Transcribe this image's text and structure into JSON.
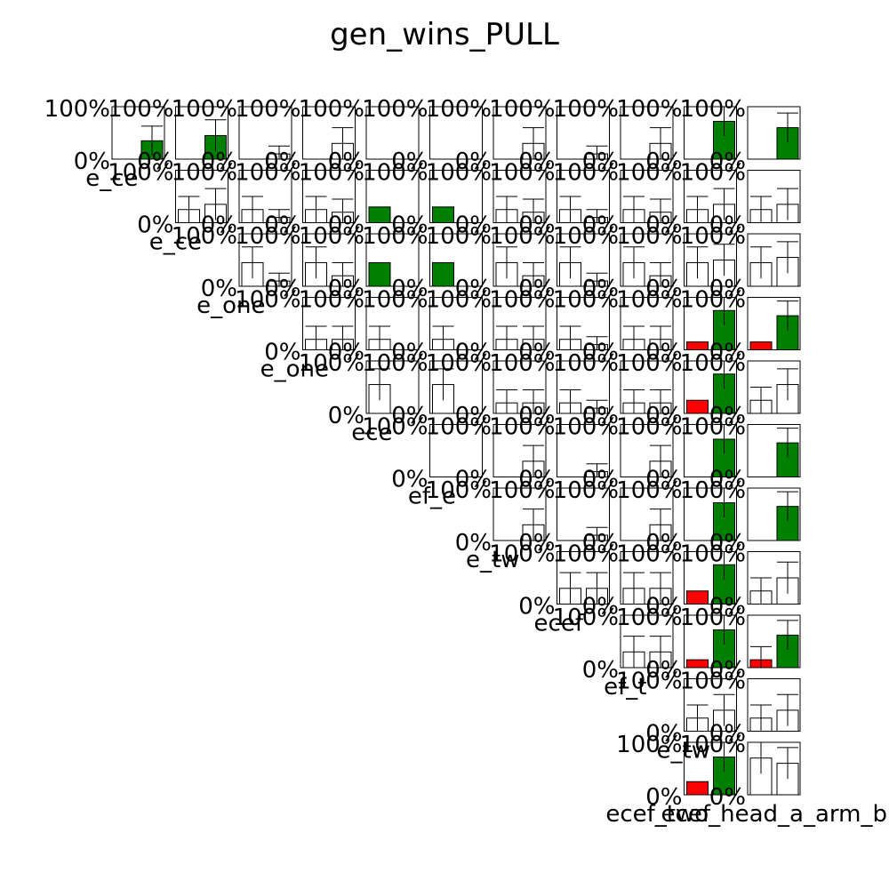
{
  "chart_data": {
    "type": "bar",
    "title": "gen_wins_PULL",
    "layout": "pairwise upper-triangular grid of small bar panels (row index = agent A, column index = agent B)",
    "ytick_labels": [
      "100%",
      "0%"
    ],
    "ylim": [
      0,
      1
    ],
    "bar_colors": {
      "significant_win": "#008000",
      "significant_loss": "#ff0000",
      "not_significant": "#ffffff"
    },
    "row_labels": [
      "e_ce",
      "e_ce",
      "e_one",
      "e_one",
      "ece",
      "ef_e",
      "e_tw",
      "ecef",
      "ef_t",
      "e_tw",
      "ecef"
    ],
    "bottom_label": "ecef_two_head_a_arm_b",
    "panels": [
      {
        "r": 0,
        "c": 0,
        "bars": [
          {
            "v": 0,
            "err": 0,
            "color": "white"
          },
          {
            "v": 0.35,
            "err": 0.28,
            "color": "green"
          }
        ]
      },
      {
        "r": 0,
        "c": 1,
        "bars": [
          {
            "v": 0,
            "err": 0,
            "color": "white"
          },
          {
            "v": 0.45,
            "err": 0.3,
            "color": "green"
          }
        ]
      },
      {
        "r": 0,
        "c": 2,
        "bars": [
          {
            "v": 0,
            "err": 0,
            "color": "white"
          },
          {
            "v": 0.1,
            "err": 0.15,
            "color": "white"
          }
        ]
      },
      {
        "r": 0,
        "c": 3,
        "bars": [
          {
            "v": 0,
            "err": 0,
            "color": "white"
          },
          {
            "v": 0.3,
            "err": 0.3,
            "color": "white"
          }
        ]
      },
      {
        "r": 0,
        "c": 4,
        "bars": [
          {
            "v": 0,
            "err": 0,
            "color": "white"
          },
          {
            "v": 0,
            "err": 0,
            "color": "white"
          }
        ]
      },
      {
        "r": 0,
        "c": 5,
        "bars": [
          {
            "v": 0,
            "err": 0,
            "color": "white"
          },
          {
            "v": 0,
            "err": 0,
            "color": "white"
          }
        ]
      },
      {
        "r": 0,
        "c": 6,
        "bars": [
          {
            "v": 0,
            "err": 0,
            "color": "white"
          },
          {
            "v": 0.3,
            "err": 0.3,
            "color": "white"
          }
        ]
      },
      {
        "r": 0,
        "c": 7,
        "bars": [
          {
            "v": 0,
            "err": 0,
            "color": "white"
          },
          {
            "v": 0.1,
            "err": 0.15,
            "color": "white"
          }
        ]
      },
      {
        "r": 0,
        "c": 8,
        "bars": [
          {
            "v": 0,
            "err": 0,
            "color": "white"
          },
          {
            "v": 0.3,
            "err": 0.3,
            "color": "white"
          }
        ]
      },
      {
        "r": 0,
        "c": 9,
        "bars": [
          {
            "v": 0,
            "err": 0,
            "color": "white"
          },
          {
            "v": 0.72,
            "err": 0.28,
            "color": "green"
          }
        ]
      },
      {
        "r": 0,
        "c": 10,
        "bars": [
          {
            "v": 0,
            "err": 0,
            "color": "white"
          },
          {
            "v": 0.6,
            "err": 0.28,
            "color": "green"
          }
        ]
      },
      {
        "r": 1,
        "c": 1,
        "bars": [
          {
            "v": 0.25,
            "err": 0.25,
            "color": "white"
          },
          {
            "v": 0.35,
            "err": 0.3,
            "color": "white"
          }
        ]
      },
      {
        "r": 1,
        "c": 2,
        "bars": [
          {
            "v": 0.25,
            "err": 0.25,
            "color": "white"
          },
          {
            "v": 0.1,
            "err": 0.15,
            "color": "white"
          }
        ]
      },
      {
        "r": 1,
        "c": 3,
        "bars": [
          {
            "v": 0.25,
            "err": 0.25,
            "color": "white"
          },
          {
            "v": 0.2,
            "err": 0.25,
            "color": "white"
          }
        ]
      },
      {
        "r": 1,
        "c": 4,
        "bars": [
          {
            "v": 0.3,
            "err": 0,
            "color": "green"
          },
          {
            "v": 0,
            "err": 0,
            "color": "white"
          }
        ]
      },
      {
        "r": 1,
        "c": 5,
        "bars": [
          {
            "v": 0.3,
            "err": 0,
            "color": "green"
          },
          {
            "v": 0,
            "err": 0,
            "color": "white"
          }
        ]
      },
      {
        "r": 1,
        "c": 6,
        "bars": [
          {
            "v": 0.25,
            "err": 0.25,
            "color": "white"
          },
          {
            "v": 0.2,
            "err": 0.25,
            "color": "white"
          }
        ]
      },
      {
        "r": 1,
        "c": 7,
        "bars": [
          {
            "v": 0.25,
            "err": 0.25,
            "color": "white"
          },
          {
            "v": 0.1,
            "err": 0.15,
            "color": "white"
          }
        ]
      },
      {
        "r": 1,
        "c": 8,
        "bars": [
          {
            "v": 0.25,
            "err": 0.25,
            "color": "white"
          },
          {
            "v": 0.2,
            "err": 0.25,
            "color": "white"
          }
        ]
      },
      {
        "r": 1,
        "c": 9,
        "bars": [
          {
            "v": 0.25,
            "err": 0.25,
            "color": "white"
          },
          {
            "v": 0.35,
            "err": 0.3,
            "color": "white"
          }
        ]
      },
      {
        "r": 1,
        "c": 10,
        "bars": [
          {
            "v": 0.25,
            "err": 0.25,
            "color": "white"
          },
          {
            "v": 0.35,
            "err": 0.3,
            "color": "white"
          }
        ]
      },
      {
        "r": 2,
        "c": 2,
        "bars": [
          {
            "v": 0.45,
            "err": 0.3,
            "color": "white"
          },
          {
            "v": 0.1,
            "err": 0.15,
            "color": "white"
          }
        ]
      },
      {
        "r": 2,
        "c": 3,
        "bars": [
          {
            "v": 0.45,
            "err": 0.3,
            "color": "white"
          },
          {
            "v": 0.2,
            "err": 0.25,
            "color": "white"
          }
        ]
      },
      {
        "r": 2,
        "c": 4,
        "bars": [
          {
            "v": 0.45,
            "err": 0,
            "color": "green"
          },
          {
            "v": 0,
            "err": 0,
            "color": "white"
          }
        ]
      },
      {
        "r": 2,
        "c": 5,
        "bars": [
          {
            "v": 0.45,
            "err": 0,
            "color": "green"
          },
          {
            "v": 0,
            "err": 0,
            "color": "white"
          }
        ]
      },
      {
        "r": 2,
        "c": 6,
        "bars": [
          {
            "v": 0.45,
            "err": 0.3,
            "color": "white"
          },
          {
            "v": 0.2,
            "err": 0.25,
            "color": "white"
          }
        ]
      },
      {
        "r": 2,
        "c": 7,
        "bars": [
          {
            "v": 0.45,
            "err": 0.3,
            "color": "white"
          },
          {
            "v": 0.1,
            "err": 0.15,
            "color": "white"
          }
        ]
      },
      {
        "r": 2,
        "c": 8,
        "bars": [
          {
            "v": 0.45,
            "err": 0.3,
            "color": "white"
          },
          {
            "v": 0.2,
            "err": 0.25,
            "color": "white"
          }
        ]
      },
      {
        "r": 2,
        "c": 9,
        "bars": [
          {
            "v": 0.45,
            "err": 0.3,
            "color": "white"
          },
          {
            "v": 0.5,
            "err": 0.3,
            "color": "white"
          }
        ]
      },
      {
        "r": 2,
        "c": 10,
        "bars": [
          {
            "v": 0.45,
            "err": 0.3,
            "color": "white"
          },
          {
            "v": 0.55,
            "err": 0.3,
            "color": "white"
          }
        ]
      },
      {
        "r": 3,
        "c": 3,
        "bars": [
          {
            "v": 0.2,
            "err": 0.25,
            "color": "white"
          },
          {
            "v": 0.2,
            "err": 0.25,
            "color": "white"
          }
        ]
      },
      {
        "r": 3,
        "c": 4,
        "bars": [
          {
            "v": 0.2,
            "err": 0.25,
            "color": "white"
          },
          {
            "v": 0,
            "err": 0,
            "color": "white"
          }
        ]
      },
      {
        "r": 3,
        "c": 5,
        "bars": [
          {
            "v": 0.2,
            "err": 0.25,
            "color": "white"
          },
          {
            "v": 0,
            "err": 0,
            "color": "white"
          }
        ]
      },
      {
        "r": 3,
        "c": 6,
        "bars": [
          {
            "v": 0.2,
            "err": 0.25,
            "color": "white"
          },
          {
            "v": 0.2,
            "err": 0.25,
            "color": "white"
          }
        ]
      },
      {
        "r": 3,
        "c": 7,
        "bars": [
          {
            "v": 0.2,
            "err": 0.25,
            "color": "white"
          },
          {
            "v": 0.1,
            "err": 0.15,
            "color": "white"
          }
        ]
      },
      {
        "r": 3,
        "c": 8,
        "bars": [
          {
            "v": 0.2,
            "err": 0.25,
            "color": "white"
          },
          {
            "v": 0.2,
            "err": 0.25,
            "color": "white"
          }
        ]
      },
      {
        "r": 3,
        "c": 9,
        "bars": [
          {
            "v": 0.15,
            "err": 0,
            "color": "red"
          },
          {
            "v": 0.75,
            "err": 0.28,
            "color": "green"
          }
        ]
      },
      {
        "r": 3,
        "c": 10,
        "bars": [
          {
            "v": 0.15,
            "err": 0,
            "color": "red"
          },
          {
            "v": 0.65,
            "err": 0.28,
            "color": "green"
          }
        ]
      },
      {
        "r": 4,
        "c": 4,
        "bars": [
          {
            "v": 0.55,
            "err": 0.3,
            "color": "white"
          },
          {
            "v": 0,
            "err": 0,
            "color": "white"
          }
        ]
      },
      {
        "r": 4,
        "c": 5,
        "bars": [
          {
            "v": 0.55,
            "err": 0.3,
            "color": "white"
          },
          {
            "v": 0,
            "err": 0,
            "color": "white"
          }
        ]
      },
      {
        "r": 4,
        "c": 6,
        "bars": [
          {
            "v": 0.2,
            "err": 0.25,
            "color": "white"
          },
          {
            "v": 0.2,
            "err": 0.25,
            "color": "white"
          }
        ]
      },
      {
        "r": 4,
        "c": 7,
        "bars": [
          {
            "v": 0.2,
            "err": 0.25,
            "color": "white"
          },
          {
            "v": 0.1,
            "err": 0.15,
            "color": "white"
          }
        ]
      },
      {
        "r": 4,
        "c": 8,
        "bars": [
          {
            "v": 0.2,
            "err": 0.25,
            "color": "white"
          },
          {
            "v": 0.2,
            "err": 0.25,
            "color": "white"
          }
        ]
      },
      {
        "r": 4,
        "c": 9,
        "bars": [
          {
            "v": 0.25,
            "err": 0,
            "color": "red"
          },
          {
            "v": 0.75,
            "err": 0.28,
            "color": "green"
          }
        ]
      },
      {
        "r": 4,
        "c": 10,
        "bars": [
          {
            "v": 0.25,
            "err": 0.25,
            "color": "white"
          },
          {
            "v": 0.55,
            "err": 0.3,
            "color": "white"
          }
        ]
      },
      {
        "r": 5,
        "c": 5,
        "bars": [
          {
            "v": 0,
            "err": 0,
            "color": "white"
          },
          {
            "v": 0,
            "err": 0,
            "color": "white"
          }
        ]
      },
      {
        "r": 5,
        "c": 6,
        "bars": [
          {
            "v": 0,
            "err": 0,
            "color": "white"
          },
          {
            "v": 0.3,
            "err": 0.3,
            "color": "white"
          }
        ]
      },
      {
        "r": 5,
        "c": 7,
        "bars": [
          {
            "v": 0,
            "err": 0,
            "color": "white"
          },
          {
            "v": 0.1,
            "err": 0.15,
            "color": "white"
          }
        ]
      },
      {
        "r": 5,
        "c": 8,
        "bars": [
          {
            "v": 0,
            "err": 0,
            "color": "white"
          },
          {
            "v": 0.3,
            "err": 0.3,
            "color": "white"
          }
        ]
      },
      {
        "r": 5,
        "c": 9,
        "bars": [
          {
            "v": 0,
            "err": 0,
            "color": "white"
          },
          {
            "v": 0.72,
            "err": 0.28,
            "color": "green"
          }
        ]
      },
      {
        "r": 5,
        "c": 10,
        "bars": [
          {
            "v": 0,
            "err": 0,
            "color": "white"
          },
          {
            "v": 0.65,
            "err": 0.28,
            "color": "green"
          }
        ]
      },
      {
        "r": 6,
        "c": 6,
        "bars": [
          {
            "v": 0,
            "err": 0,
            "color": "white"
          },
          {
            "v": 0.3,
            "err": 0.3,
            "color": "white"
          }
        ]
      },
      {
        "r": 6,
        "c": 7,
        "bars": [
          {
            "v": 0,
            "err": 0,
            "color": "white"
          },
          {
            "v": 0.1,
            "err": 0.15,
            "color": "white"
          }
        ]
      },
      {
        "r": 6,
        "c": 8,
        "bars": [
          {
            "v": 0,
            "err": 0,
            "color": "white"
          },
          {
            "v": 0.3,
            "err": 0.3,
            "color": "white"
          }
        ]
      },
      {
        "r": 6,
        "c": 9,
        "bars": [
          {
            "v": 0,
            "err": 0,
            "color": "white"
          },
          {
            "v": 0.72,
            "err": 0.28,
            "color": "green"
          }
        ]
      },
      {
        "r": 6,
        "c": 10,
        "bars": [
          {
            "v": 0,
            "err": 0,
            "color": "white"
          },
          {
            "v": 0.65,
            "err": 0.28,
            "color": "green"
          }
        ]
      },
      {
        "r": 7,
        "c": 7,
        "bars": [
          {
            "v": 0.3,
            "err": 0.3,
            "color": "white"
          },
          {
            "v": 0.3,
            "err": 0.3,
            "color": "white"
          }
        ]
      },
      {
        "r": 7,
        "c": 8,
        "bars": [
          {
            "v": 0.3,
            "err": 0.3,
            "color": "white"
          },
          {
            "v": 0.3,
            "err": 0.3,
            "color": "white"
          }
        ]
      },
      {
        "r": 7,
        "c": 9,
        "bars": [
          {
            "v": 0.25,
            "err": 0,
            "color": "red"
          },
          {
            "v": 0.75,
            "err": 0.28,
            "color": "green"
          }
        ]
      },
      {
        "r": 7,
        "c": 10,
        "bars": [
          {
            "v": 0.25,
            "err": 0.25,
            "color": "white"
          },
          {
            "v": 0.5,
            "err": 0.3,
            "color": "white"
          }
        ]
      },
      {
        "r": 8,
        "c": 8,
        "bars": [
          {
            "v": 0.3,
            "err": 0.3,
            "color": "white"
          },
          {
            "v": 0.3,
            "err": 0.3,
            "color": "white"
          }
        ]
      },
      {
        "r": 8,
        "c": 9,
        "bars": [
          {
            "v": 0.15,
            "err": 0,
            "color": "red"
          },
          {
            "v": 0.72,
            "err": 0.28,
            "color": "green"
          }
        ]
      },
      {
        "r": 8,
        "c": 10,
        "bars": [
          {
            "v": 0.15,
            "err": 0.25,
            "color": "red"
          },
          {
            "v": 0.62,
            "err": 0.28,
            "color": "green"
          }
        ]
      },
      {
        "r": 9,
        "c": 9,
        "bars": [
          {
            "v": 0.25,
            "err": 0.25,
            "color": "white"
          },
          {
            "v": 0.4,
            "err": 0.3,
            "color": "white"
          }
        ]
      },
      {
        "r": 9,
        "c": 10,
        "bars": [
          {
            "v": 0.25,
            "err": 0.25,
            "color": "white"
          },
          {
            "v": 0.4,
            "err": 0.3,
            "color": "white"
          }
        ]
      },
      {
        "r": 10,
        "c": 9,
        "bars": [
          {
            "v": 0.25,
            "err": 0,
            "color": "red"
          },
          {
            "v": 0.72,
            "err": 0.28,
            "color": "green"
          }
        ]
      },
      {
        "r": 10,
        "c": 10,
        "bars": [
          {
            "v": 0.7,
            "err": 0.3,
            "color": "white"
          },
          {
            "v": 0.6,
            "err": 0.3,
            "color": "white"
          }
        ]
      }
    ]
  }
}
